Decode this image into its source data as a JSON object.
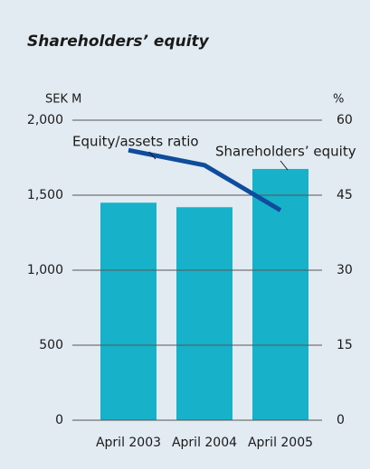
{
  "chart_data": {
    "type": "bar",
    "title": "Shareholders’ equity",
    "y_label": "SEK M",
    "y2_label": "%",
    "categories": [
      "April 2003",
      "April 2004",
      "April 2005"
    ],
    "series": [
      {
        "name": "Shareholders’ equity",
        "color": "#17b1c9",
        "values": [
          1450,
          1420,
          1675
        ]
      },
      {
        "name": "Equity/assets ratio",
        "color": "#0f4c9c",
        "values": [
          54,
          51,
          42
        ],
        "axis": "y2",
        "type": "line"
      }
    ],
    "ylim": [
      0,
      2000
    ],
    "yticks": [
      0,
      500,
      {
        "value": 1000,
        "label": "1,000"
      },
      {
        "value": 1500,
        "label": "1,500"
      },
      {
        "value": 2000,
        "label": "2,000"
      }
    ],
    "y2lim": [
      0,
      60
    ],
    "y2ticks": [
      0,
      15,
      30,
      45,
      60
    ],
    "grid": true
  }
}
